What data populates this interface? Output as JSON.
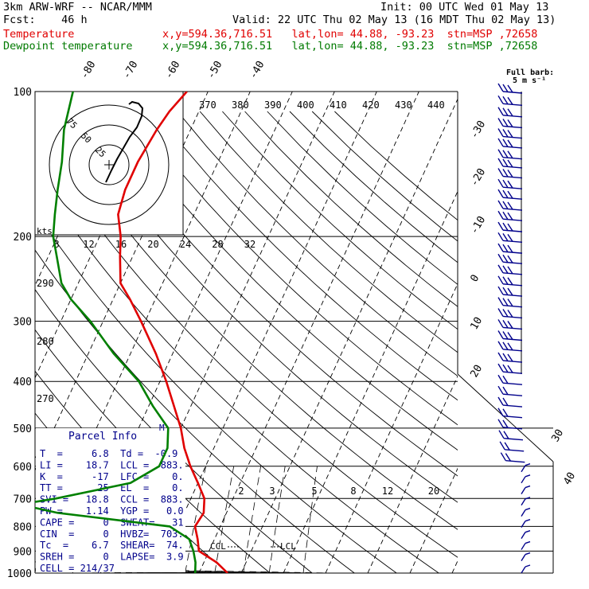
{
  "header": {
    "model": "3km ARW-WRF -- NCAR/MMM",
    "init": "Init: 00 UTC Wed 01 May 13",
    "fcst": "Fcst:    46 h",
    "valid": "Valid: 22 UTC Thu 02 May 13 (16 MDT Thu 02 May 13)",
    "temp_label": "Temperature",
    "temp_info": "x,y=594.36,716.51   lat,lon= 44.88, -93.23  stn=MSP ,72658",
    "dew_label": "Dewpoint temperature",
    "dew_info": "x,y=594.36,716.51   lat,lon= 44.88, -93.23  stn=MSP ,72658"
  },
  "barb_legend": {
    "title": "Full barb:",
    "value": "5 m s⁻¹"
  },
  "hodograph_label": "kts",
  "hodograph_rings": [
    "25",
    "50",
    "75"
  ],
  "parcel": {
    "title": "Parcel Info",
    "rows": [
      "T  =     6.8  Td =  -0.9",
      "LI =    18.7  LCL =  883.",
      "K  =     -17  LFC =    0.",
      "TT =      25  EL  =    0.",
      "SVI =   18.8  CCL =  883.",
      "PW =    1.14  YGP =   0.0",
      "CAPE =     0  SWEAT=   31",
      "CIN  =     0  HVBZ=  703.",
      "Tc  =    6.7  SHEAR=  74.",
      "SREH =     0  LAPSE=  3.9",
      "CELL = 214/37"
    ]
  },
  "annotations": {
    "ccl": "CCL",
    "lcl": "LCL",
    "m": "M"
  },
  "colors": {
    "temperature": "#e00000",
    "dewpoint": "#008000",
    "axes": "#000000",
    "wind": "#00008b"
  },
  "chart_data": {
    "type": "skew-t",
    "pressure_levels": [
      100,
      200,
      300,
      400,
      500,
      600,
      700,
      800,
      900,
      1000
    ],
    "isotherm_labels": [
      -80,
      -70,
      -60,
      -50,
      -40,
      -30,
      -20,
      -10,
      0,
      10,
      20,
      30,
      40
    ],
    "theta_labels": [
      370,
      380,
      390,
      400,
      410,
      420,
      430,
      440
    ],
    "mixing_ratio_labels": [
      2,
      3,
      5,
      8,
      12,
      20
    ],
    "lower_left_labels": [
      290,
      280,
      270
    ],
    "hodograph_speed_labels": [
      8,
      12,
      16,
      20,
      24,
      28,
      32
    ],
    "series": [
      {
        "name": "Temperature",
        "color": "#e00000",
        "points": [
          [
            1000,
            6.8
          ],
          [
            950,
            3
          ],
          [
            900,
            -2.4
          ],
          [
            850,
            -4
          ],
          [
            800,
            -6
          ],
          [
            750,
            -5.4
          ],
          [
            700,
            -6.8
          ],
          [
            650,
            -10
          ],
          [
            600,
            -13.6
          ],
          [
            550,
            -17
          ],
          [
            500,
            -20
          ],
          [
            450,
            -24
          ],
          [
            400,
            -28.5
          ],
          [
            350,
            -34
          ],
          [
            300,
            -41
          ],
          [
            270,
            -46
          ],
          [
            250,
            -50
          ],
          [
            220,
            -53
          ],
          [
            200,
            -55
          ],
          [
            180,
            -58
          ],
          [
            160,
            -59
          ],
          [
            140,
            -59
          ],
          [
            120,
            -58
          ],
          [
            110,
            -57
          ],
          [
            100,
            -55
          ]
        ]
      },
      {
        "name": "Dewpoint temperature",
        "color": "#008000",
        "points": [
          [
            1000,
            -0.9
          ],
          [
            950,
            -2
          ],
          [
            900,
            -3.7
          ],
          [
            850,
            -6
          ],
          [
            800,
            -12
          ],
          [
            750,
            -40
          ],
          [
            720,
            -50
          ],
          [
            700,
            -42
          ],
          [
            650,
            -26
          ],
          [
            600,
            -21
          ],
          [
            550,
            -21
          ],
          [
            500,
            -23
          ],
          [
            450,
            -29
          ],
          [
            400,
            -35
          ],
          [
            350,
            -44
          ],
          [
            300,
            -53
          ],
          [
            270,
            -60
          ],
          [
            250,
            -64
          ],
          [
            220,
            -68
          ],
          [
            200,
            -71
          ],
          [
            180,
            -73
          ],
          [
            160,
            -75
          ],
          [
            140,
            -77
          ],
          [
            120,
            -80
          ],
          [
            100,
            -82
          ]
        ]
      }
    ],
    "wind_barb_pressures": [
      100,
      106,
      112,
      118,
      124,
      130,
      137,
      143,
      150,
      158,
      166,
      175,
      184,
      194,
      204,
      215,
      226,
      238,
      251,
      264,
      278,
      293,
      309,
      326,
      343,
      362,
      382,
      403,
      425,
      448,
      472,
      498,
      525,
      554,
      584,
      616,
      650,
      685,
      723,
      762,
      804,
      848,
      894,
      943,
      1000
    ]
  }
}
